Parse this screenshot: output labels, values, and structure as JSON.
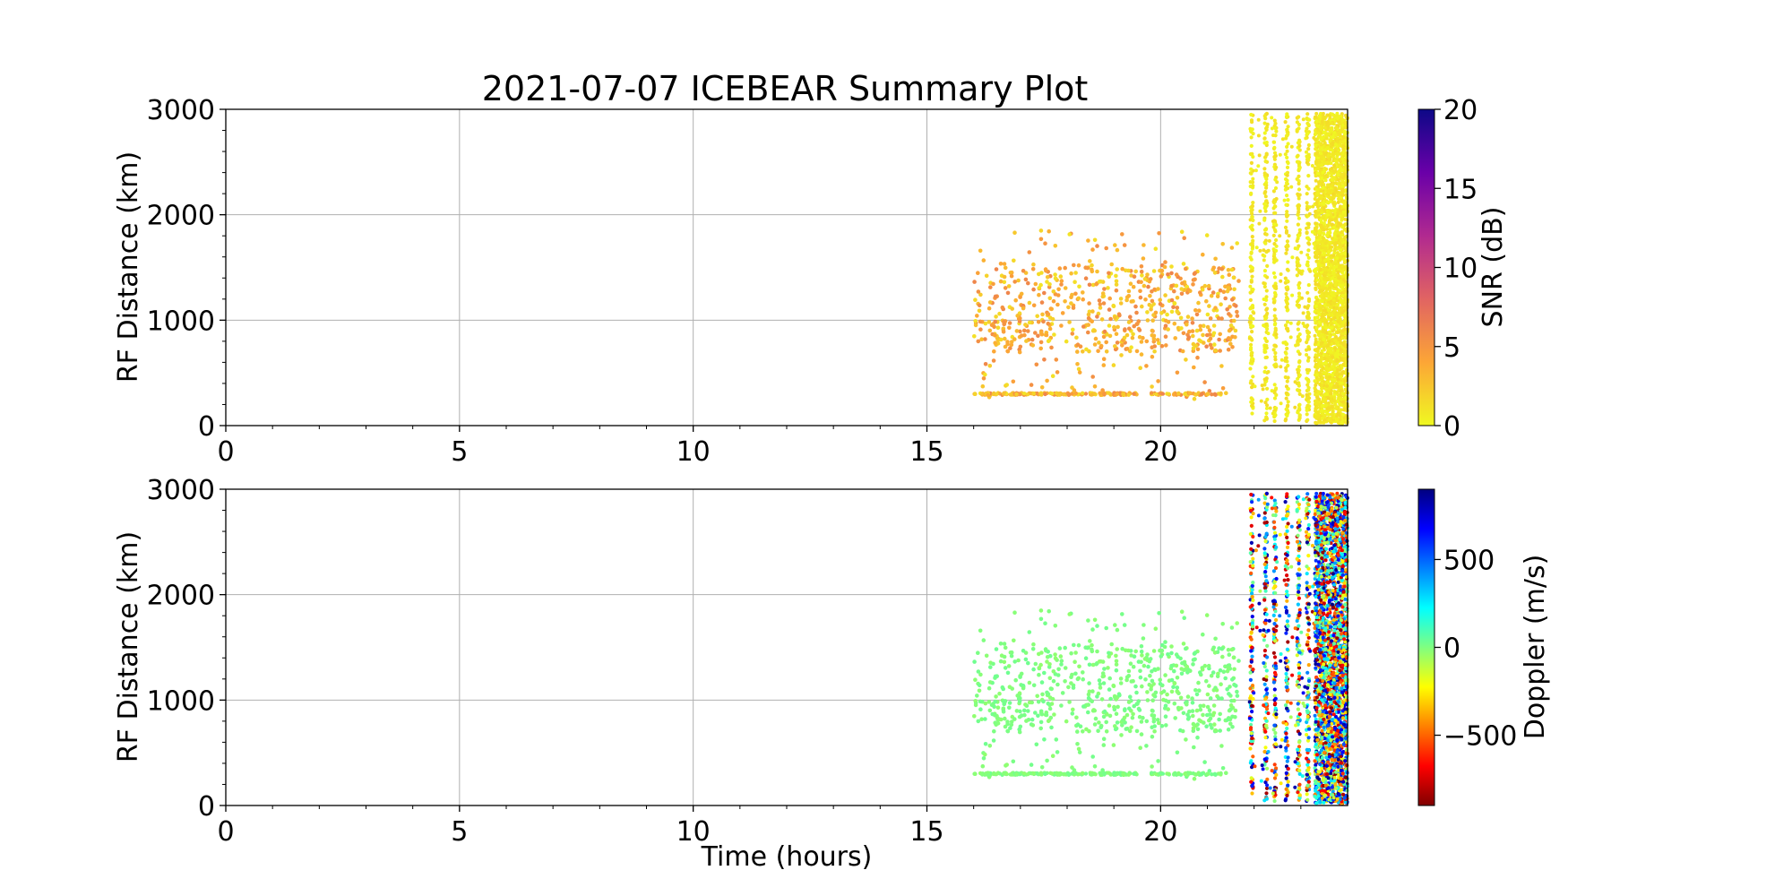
{
  "title": "2021-07-07 ICEBEAR Summary Plot",
  "chart_data": [
    {
      "type": "scatter",
      "title": "2021-07-07 ICEBEAR Summary Plot",
      "xlabel": "",
      "ylabel": "RF Distance (km)",
      "xlim": [
        0,
        24
      ],
      "ylim": [
        0,
        3000
      ],
      "xticks": [
        "0",
        "5",
        "10",
        "15",
        "20"
      ],
      "yticks": [
        "0",
        "1000",
        "2000",
        "3000"
      ],
      "grid": true,
      "colorbar": {
        "label": "SNR (dB)",
        "range": [
          0,
          20
        ],
        "ticks": [
          "0",
          "5",
          "10",
          "15",
          "20"
        ],
        "colormap": "plasma_r",
        "colors": [
          "#f0f921",
          "#fca636",
          "#e16462",
          "#b12a90",
          "#6a00a8",
          "#0d0887"
        ]
      },
      "data_description_values": {
        "main_cluster_x_range": [
          16.0,
          21.7
        ],
        "main_cluster_y_range": [
          250,
          1850
        ],
        "ground_line_y": 300,
        "ground_line_x_range": [
          16.0,
          21.3
        ],
        "streaks_x": [
          21.95,
          22.25,
          22.45,
          22.7,
          22.95,
          23.15
        ],
        "streak_y_range": [
          0,
          2960
        ],
        "dense_block_x_range": [
          23.3,
          24.0
        ],
        "typical_snr_db": [
          0,
          6
        ]
      }
    },
    {
      "type": "scatter",
      "title": "",
      "xlabel": "Time (hours)",
      "ylabel": "RF Distance (km)",
      "xlim": [
        0,
        24
      ],
      "ylim": [
        0,
        3000
      ],
      "xticks": [
        "0",
        "5",
        "10",
        "15",
        "20"
      ],
      "yticks": [
        "0",
        "1000",
        "2000",
        "3000"
      ],
      "grid": true,
      "colorbar": {
        "label": "Doppler (m/s)",
        "range": [
          -900,
          900
        ],
        "ticks": [
          "−500",
          "0",
          "500"
        ],
        "tick_values": [
          -500,
          0,
          500
        ],
        "colormap": "jet_r",
        "colors": [
          "#800000",
          "#ff0000",
          "#ff8000",
          "#ffff00",
          "#80ff80",
          "#00ffff",
          "#0080ff",
          "#0000ff",
          "#000080"
        ]
      },
      "data_description_values": {
        "main_cluster_x_range": [
          16.0,
          21.7
        ],
        "main_cluster_y_range": [
          250,
          1850
        ],
        "ground_line_y": 300,
        "main_cluster_doppler_ms": 0,
        "streaks_x": [
          21.95,
          22.25,
          22.45,
          22.7,
          22.95,
          23.15
        ],
        "dense_block_x_range": [
          23.3,
          24.0
        ],
        "streak_doppler_range_ms": [
          -900,
          900
        ]
      }
    }
  ]
}
